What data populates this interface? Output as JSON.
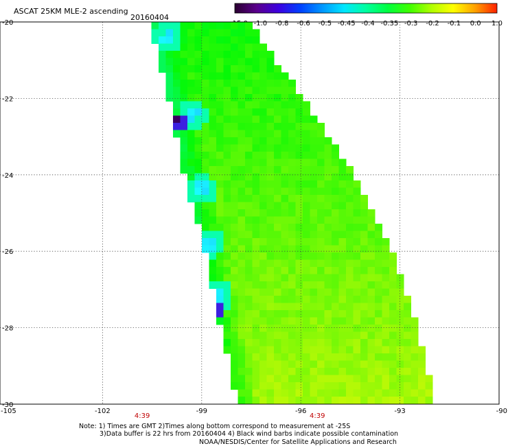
{
  "header": {
    "title": "ASCAT 25KM MLE-2 ascending",
    "date": "20160404"
  },
  "colorbar": {
    "labels": [
      "-15.0",
      "-1.0",
      "-0.8",
      "-0.6",
      "-0.5",
      "-0.45",
      "-0.4",
      "-0.35",
      "-0.3",
      "-0.2",
      "-0.1",
      "0.0",
      "1.0"
    ],
    "colors": [
      "#2a0030",
      "#5a008c",
      "#3c00e0",
      "#0040ff",
      "#0096ff",
      "#00e6ff",
      "#00ffa0",
      "#00ff40",
      "#40ff00",
      "#b0ff00",
      "#ffff00",
      "#ffa000",
      "#ff2000"
    ]
  },
  "map": {
    "x_axis": {
      "labels": [
        "-105",
        "-102",
        "-99",
        "-96",
        "-93",
        "-90"
      ],
      "range": [
        -105,
        -90
      ]
    },
    "y_axis": {
      "labels": [
        "-20",
        "-22",
        "-24",
        "-26",
        "-28",
        "-30"
      ],
      "range": [
        -30,
        -20
      ]
    },
    "time_labels": [
      {
        "text": "4:39",
        "lon": -100.8
      },
      {
        "text": "4:39",
        "lon": -95.5
      }
    ],
    "swath": {
      "left_edge": [
        [
          -20,
          -100.5
        ],
        [
          -22,
          -99.9
        ],
        [
          -24,
          -99.4
        ],
        [
          -26,
          -98.8
        ],
        [
          -28,
          -98.3
        ],
        [
          -30,
          -97.8
        ]
      ],
      "right_edge": [
        [
          -20,
          -97.7
        ],
        [
          -22,
          -96.0
        ],
        [
          -24,
          -94.5
        ],
        [
          -26,
          -93.3
        ],
        [
          -28,
          -92.6
        ],
        [
          -30,
          -92.0
        ]
      ]
    },
    "features": [
      {
        "type": "cyan-patch",
        "lat": -20.4,
        "lon": -100.0
      },
      {
        "type": "dark-patch",
        "lat": -22.6,
        "lon": -99.7
      },
      {
        "type": "cyan-patch",
        "lat": -22.4,
        "lon": -99.3
      },
      {
        "type": "cyan-patch",
        "lat": -24.4,
        "lon": -99.0
      },
      {
        "type": "cyan-patch",
        "lat": -25.8,
        "lon": -98.8
      },
      {
        "type": "cyan-patch",
        "lat": -27.2,
        "lon": -98.5
      },
      {
        "type": "dark-patch",
        "lat": -27.5,
        "lon": -98.6
      }
    ]
  },
  "notes": {
    "line1": "Note: 1) Times are GMT 2)Times along bottom correspond to measurement at -25S",
    "line2": "3)Data buffer is 22 hrs from 20160404 4) Black wind barbs indicate possible contamination",
    "line3": "NOAA/NESDIS/Center for Satellite Applications and Research"
  }
}
